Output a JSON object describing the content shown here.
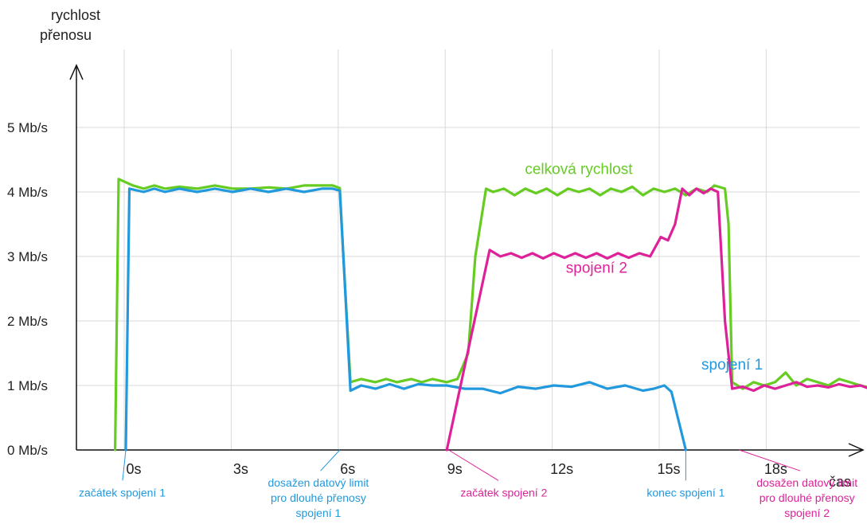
{
  "chart_data": {
    "type": "line",
    "ylabel": "rychlost\npřenosu",
    "xlabel": "čas",
    "xlim": [
      -1,
      21
    ],
    "ylim": [
      0,
      6
    ],
    "y_ticks": [
      {
        "value": 0,
        "label": "0 Mb/s"
      },
      {
        "value": 1,
        "label": "1 Mb/s"
      },
      {
        "value": 2,
        "label": "2 Mb/s"
      },
      {
        "value": 3,
        "label": "3 Mb/s"
      },
      {
        "value": 4,
        "label": "4 Mb/s"
      },
      {
        "value": 5,
        "label": "5 Mb/s"
      }
    ],
    "x_ticks": [
      {
        "value": 0,
        "label": "0s"
      },
      {
        "value": 3,
        "label": "3s"
      },
      {
        "value": 6,
        "label": "6s"
      },
      {
        "value": 9,
        "label": "9s"
      },
      {
        "value": 12,
        "label": "12s"
      },
      {
        "value": 15,
        "label": "15s"
      },
      {
        "value": 18,
        "label": "18s"
      }
    ],
    "grid": true,
    "series": [
      {
        "name": "celková rychlost",
        "color": "#66cc22",
        "x": [
          -0.3,
          -0.2,
          0.2,
          0.5,
          0.8,
          1.1,
          1.5,
          2.0,
          2.5,
          3.0,
          3.5,
          4.0,
          4.5,
          5.0,
          5.5,
          5.8,
          6.0,
          6.1,
          6.3,
          6.6,
          7.0,
          7.3,
          7.6,
          8.0,
          8.3,
          8.6,
          9.0,
          9.3,
          9.6,
          9.8,
          10.1,
          10.3,
          10.6,
          10.9,
          11.2,
          11.5,
          11.8,
          12.1,
          12.4,
          12.7,
          13.0,
          13.3,
          13.6,
          13.9,
          14.2,
          14.5,
          14.8,
          15.1,
          15.4,
          15.7,
          16.0,
          16.3,
          16.5,
          16.8,
          16.9,
          17.0,
          17.3,
          17.6,
          17.9,
          18.2,
          18.5,
          18.8,
          19.1,
          19.4,
          19.7,
          20.0,
          20.3,
          20.6,
          21.0
        ],
        "values": [
          0.0,
          4.2,
          4.1,
          4.05,
          4.1,
          4.05,
          4.08,
          4.05,
          4.1,
          4.05,
          4.05,
          4.07,
          4.05,
          4.1,
          4.1,
          4.1,
          4.06,
          3.0,
          1.05,
          1.1,
          1.05,
          1.1,
          1.05,
          1.1,
          1.05,
          1.1,
          1.05,
          1.1,
          1.5,
          3.0,
          4.05,
          4.0,
          4.05,
          3.95,
          4.05,
          3.98,
          4.05,
          3.95,
          4.05,
          4.0,
          4.05,
          3.95,
          4.05,
          4.0,
          4.08,
          3.95,
          4.05,
          4.0,
          4.05,
          3.95,
          4.05,
          4.0,
          4.1,
          4.05,
          3.5,
          1.05,
          0.95,
          1.05,
          1.0,
          1.05,
          1.2,
          1.0,
          1.1,
          1.05,
          1.0,
          1.1,
          1.05,
          1.0,
          0.95
        ]
      },
      {
        "name": "spojení 1",
        "color": "#2299dd",
        "x": [
          0.0,
          0.1,
          0.5,
          0.8,
          1.1,
          1.5,
          2.0,
          2.5,
          3.0,
          3.5,
          4.0,
          4.5,
          5.0,
          5.5,
          5.8,
          6.0,
          6.1,
          6.3,
          6.6,
          7.0,
          7.4,
          7.8,
          8.2,
          8.6,
          9.0,
          9.5,
          10.0,
          10.5,
          11.0,
          11.5,
          12.0,
          12.5,
          13.0,
          13.5,
          14.0,
          14.5,
          14.8,
          15.1,
          15.3,
          15.7
        ],
        "values": [
          0.0,
          4.05,
          4.0,
          4.05,
          4.0,
          4.05,
          4.0,
          4.05,
          4.0,
          4.05,
          4.0,
          4.05,
          4.0,
          4.05,
          4.05,
          4.02,
          3.0,
          0.92,
          1.0,
          0.95,
          1.02,
          0.95,
          1.02,
          1.0,
          1.0,
          0.95,
          0.95,
          0.88,
          0.98,
          0.95,
          1.0,
          0.98,
          1.05,
          0.95,
          1.0,
          0.92,
          0.95,
          1.0,
          0.9,
          0.0
        ]
      },
      {
        "name": "spojení 2",
        "color": "#dd2299",
        "x": [
          9.0,
          10.2,
          10.5,
          10.8,
          11.1,
          11.4,
          11.7,
          12.0,
          12.3,
          12.6,
          12.9,
          13.2,
          13.5,
          13.8,
          14.1,
          14.4,
          14.7,
          15.0,
          15.2,
          15.4,
          15.6,
          15.8,
          16.0,
          16.2,
          16.4,
          16.6,
          16.7,
          16.8,
          17.0,
          17.3,
          17.6,
          17.9,
          18.2,
          18.5,
          18.8,
          19.1,
          19.4,
          19.7,
          20.0,
          20.3,
          20.6,
          21.0
        ],
        "values": [
          0.0,
          3.1,
          3.0,
          3.05,
          2.98,
          3.05,
          2.97,
          3.05,
          2.98,
          3.05,
          2.98,
          3.05,
          2.97,
          3.05,
          2.98,
          3.05,
          3.0,
          3.3,
          3.25,
          3.5,
          4.05,
          3.95,
          4.05,
          3.98,
          4.05,
          4.0,
          3.0,
          2.0,
          0.95,
          0.98,
          0.92,
          1.0,
          0.95,
          1.0,
          1.05,
          0.98,
          1.0,
          0.97,
          1.02,
          0.98,
          1.0,
          0.92
        ]
      }
    ],
    "series_labels": [
      {
        "text": "celková rychlost",
        "color": "#66cc22",
        "x": 12.7,
        "y": 4.28
      },
      {
        "text": "spojení 2",
        "color": "#dd2299",
        "x": 13.2,
        "y": 2.75
      },
      {
        "text": "spojení 1",
        "color": "#2299dd",
        "x": 17.0,
        "y": 1.25
      }
    ],
    "annotations": [
      {
        "lines": [
          "začátek spojení 1"
        ],
        "color": "#2299dd",
        "x": 0.0,
        "text_x": -0.1,
        "text_y": -0.72
      },
      {
        "lines": [
          "dosažen datový limit",
          "pro dlouhé přenosy",
          "spojení 1"
        ],
        "color": "#2299dd",
        "x": 6.0,
        "text_x": 5.4,
        "text_y": -0.57
      },
      {
        "lines": [
          "začátek spojení 2"
        ],
        "color": "#dd2299",
        "x": 9.05,
        "text_x": 10.6,
        "text_y": -0.72
      },
      {
        "lines": [
          "konec spojení 1"
        ],
        "color": "#2299dd",
        "x": 15.7,
        "text_x": 15.7,
        "text_y": -0.72
      },
      {
        "lines": [
          "dosažen datový limit",
          "pro dlouhé přenosy",
          "spojení 2"
        ],
        "color": "#dd2299",
        "x": 17.2,
        "text_x": 19.1,
        "text_y": -0.57
      }
    ]
  }
}
